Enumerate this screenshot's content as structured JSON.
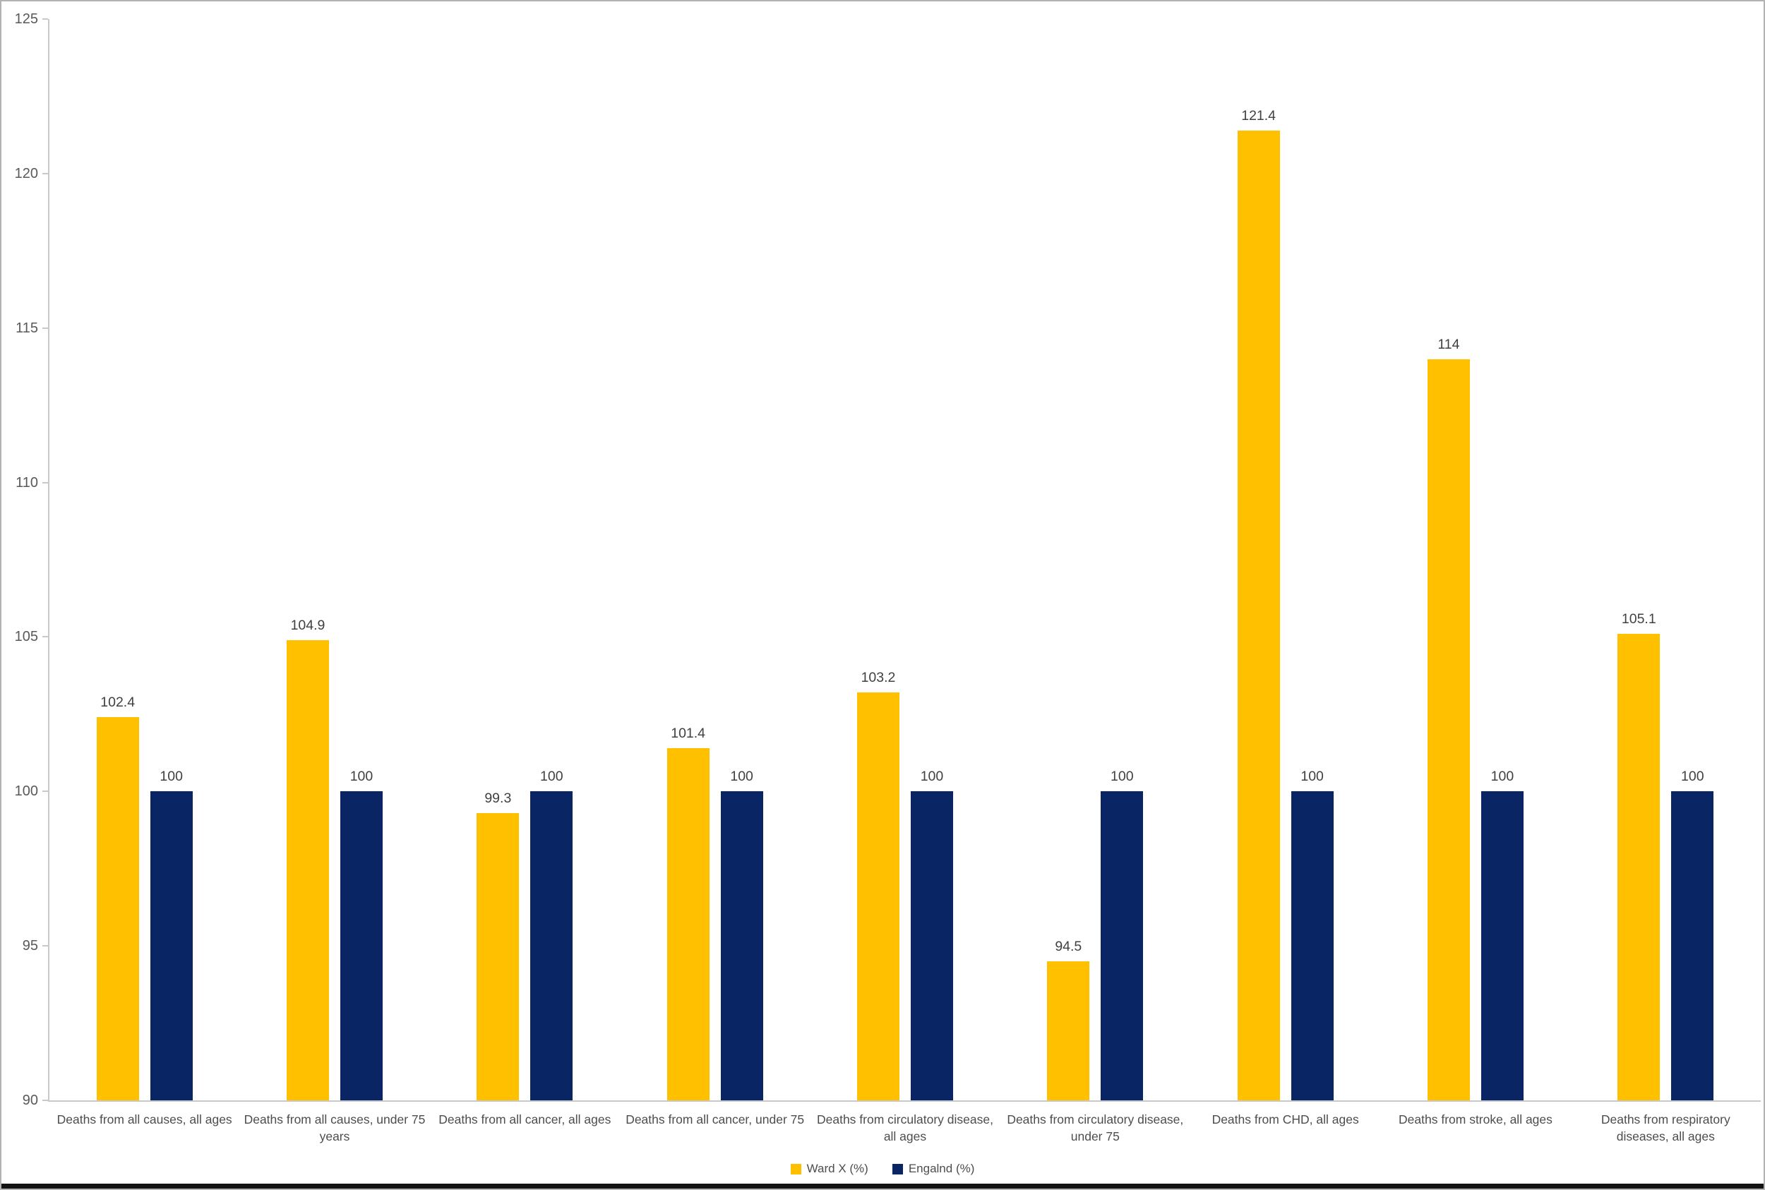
{
  "chart_data": {
    "type": "bar",
    "title": "",
    "xlabel": "",
    "ylabel": "",
    "ylim": [
      90,
      125
    ],
    "ytick_step": 5,
    "ytick_labels": [
      "125",
      "120",
      "115",
      "110",
      "105",
      "100",
      "95",
      "90"
    ],
    "grid": false,
    "legend_position": "bottom",
    "categories": [
      "Deaths from all causes, all ages",
      "Deaths from all causes, under 75 years",
      "Deaths from all cancer, all ages",
      "Deaths from all cancer, under 75",
      "Deaths from circulatory disease, all ages",
      "Deaths from circulatory disease, under 75",
      "Deaths from CHD, all ages",
      "Deaths from stroke, all ages",
      "Deaths from respiratory diseases, all ages"
    ],
    "series": [
      {
        "name": "Ward X (%)",
        "color": "#FFC000",
        "values": [
          102.4,
          104.9,
          99.3,
          101.4,
          103.2,
          94.5,
          121.4,
          114,
          105.1
        ],
        "labels": [
          "102.4",
          "104.9",
          "99.3",
          "101.4",
          "103.2",
          "94.5",
          "121.4",
          "114",
          "105.1"
        ]
      },
      {
        "name": "Engalnd (%)",
        "color": "#092563",
        "values": [
          100,
          100,
          100,
          100,
          100,
          100,
          100,
          100,
          100
        ],
        "labels": [
          "100",
          "100",
          "100",
          "100",
          "100",
          "100",
          "100",
          "100",
          "100"
        ]
      }
    ]
  },
  "colors": {
    "axis_line": "#c9c9c9",
    "tick_text": "#595959",
    "value_text": "#404040",
    "category_text": "#4d4d4d",
    "bottom_strip": "#121212"
  }
}
